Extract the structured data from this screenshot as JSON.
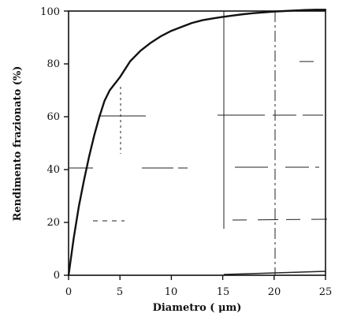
{
  "chart_data": {
    "type": "line",
    "title": "",
    "xlabel": "Diametro ( μm)",
    "ylabel": "Rendimento frazionato (%)",
    "xlim": [
      0,
      25
    ],
    "ylim": [
      0,
      100
    ],
    "xticks": [
      "0",
      "5",
      "10",
      "15",
      "20",
      "25"
    ],
    "yticks": [
      "0",
      "20",
      "40",
      "60",
      "80",
      "100"
    ],
    "grid": "partial dashed",
    "series": [
      {
        "x": [
          0,
          0.5,
          1,
          1.5,
          2,
          2.5,
          3,
          3.5,
          4,
          5,
          6,
          7,
          8,
          9,
          10,
          11,
          12,
          13,
          14,
          15,
          16,
          17,
          18,
          19,
          20,
          21,
          22,
          23,
          24,
          25
        ],
        "y": [
          0,
          14,
          26,
          36,
          45,
          53,
          60,
          66,
          70,
          75,
          81,
          85,
          88,
          90.5,
          92.5,
          94,
          95.5,
          96.5,
          97.2,
          97.8,
          98.3,
          98.8,
          99.2,
          99.5,
          99.8,
          100,
          100.2,
          100.4,
          100.5,
          100.5
        ]
      }
    ],
    "colors": {
      "line": "#111111",
      "axis": "#111111",
      "grid": "#222222"
    }
  }
}
